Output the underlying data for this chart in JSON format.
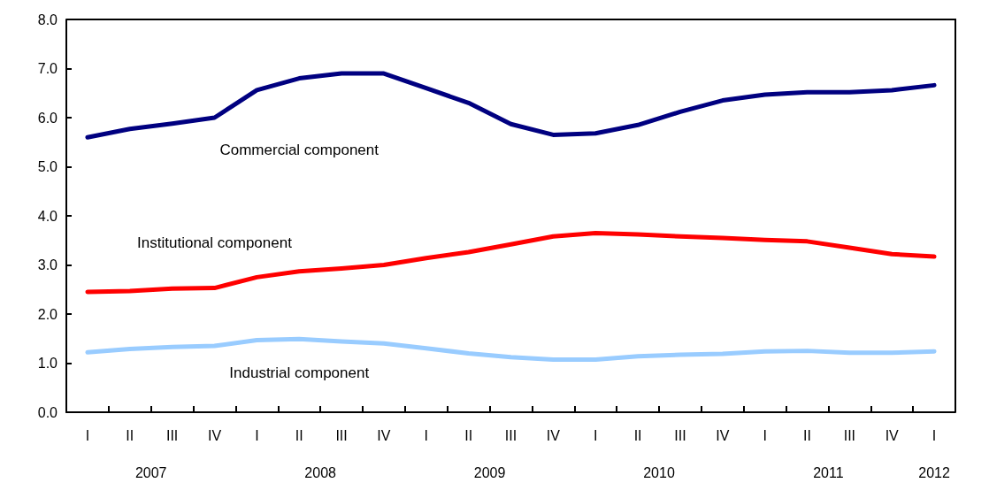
{
  "chart_data": {
    "type": "line",
    "categories": [
      "I",
      "II",
      "III",
      "IV",
      "I",
      "II",
      "III",
      "IV",
      "I",
      "II",
      "III",
      "IV",
      "I",
      "II",
      "III",
      "IV",
      "I",
      "II",
      "III",
      "IV",
      "I"
    ],
    "annotations": [
      "2007",
      "2008",
      "2009",
      "2010",
      "2011",
      "2012"
    ],
    "series": [
      {
        "name": "Commercial component",
        "color": "#000080",
        "values": [
          5.6,
          5.77,
          5.88,
          6.0,
          6.56,
          6.8,
          6.9,
          6.9,
          6.6,
          6.3,
          5.87,
          5.65,
          5.68,
          5.85,
          6.12,
          6.35,
          6.47,
          6.52,
          6.52,
          6.56,
          6.66
        ]
      },
      {
        "name": "Institutional component",
        "color": "#ff0000",
        "values": [
          2.45,
          2.47,
          2.52,
          2.53,
          2.75,
          2.87,
          2.93,
          3.0,
          3.14,
          3.26,
          3.42,
          3.58,
          3.65,
          3.62,
          3.58,
          3.55,
          3.51,
          3.48,
          3.35,
          3.22,
          3.17
        ]
      },
      {
        "name": "Industrial component",
        "color": "#99ccff",
        "values": [
          1.22,
          1.29,
          1.33,
          1.35,
          1.47,
          1.49,
          1.44,
          1.4,
          1.3,
          1.2,
          1.12,
          1.07,
          1.07,
          1.14,
          1.17,
          1.19,
          1.24,
          1.25,
          1.21,
          1.21,
          1.24
        ]
      }
    ],
    "ylim": [
      0,
      8
    ],
    "yticks": [
      {
        "value": 0,
        "label": "0.0"
      },
      {
        "value": 1,
        "label": "1.0"
      },
      {
        "value": 2,
        "label": "2.0"
      },
      {
        "value": 3,
        "label": "3.0"
      },
      {
        "value": 4,
        "label": "4.0"
      },
      {
        "value": 5,
        "label": "5.0"
      },
      {
        "value": 6,
        "label": "6.0"
      },
      {
        "value": 7,
        "label": "7.0"
      },
      {
        "value": 8,
        "label": "8.0"
      }
    ],
    "grid": false,
    "legend": false,
    "marker": "none",
    "line_style": "solid"
  }
}
